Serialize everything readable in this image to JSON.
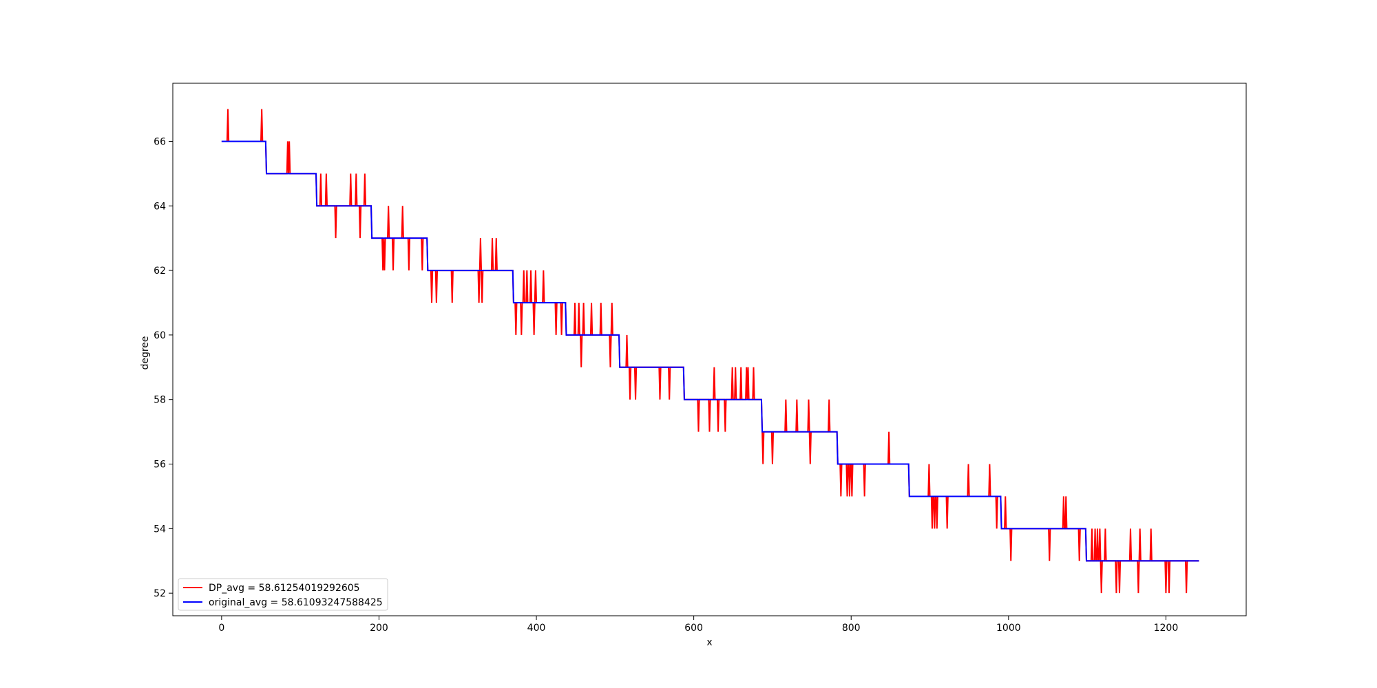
{
  "chart_data": {
    "type": "line",
    "title": "",
    "xlabel": "x",
    "ylabel": "degree",
    "xlim": [
      -62,
      1302
    ],
    "ylim": [
      51.3,
      67.8
    ],
    "xticks": [
      0,
      200,
      400,
      600,
      800,
      1000,
      1200
    ],
    "yticks": [
      52,
      54,
      56,
      58,
      60,
      62,
      64,
      66
    ],
    "grid": false,
    "legend_position": "lower-left",
    "series": [
      {
        "name": "DP_avg = 58.61254019292605",
        "color": "#ff0000",
        "base_steps": [
          [
            0,
            56,
            66
          ],
          [
            57,
            120,
            65
          ],
          [
            121,
            190,
            64
          ],
          [
            191,
            261,
            63
          ],
          [
            262,
            370,
            62
          ],
          [
            371,
            437,
            61
          ],
          [
            438,
            505,
            60
          ],
          [
            506,
            587,
            59
          ],
          [
            588,
            686,
            58
          ],
          [
            687,
            782,
            57
          ],
          [
            783,
            873,
            56
          ],
          [
            874,
            990,
            55
          ],
          [
            991,
            1098,
            54
          ],
          [
            1099,
            1242,
            53
          ]
        ],
        "spikes": [
          [
            8,
            67
          ],
          [
            51,
            67
          ],
          [
            84,
            66
          ],
          [
            86,
            66
          ],
          [
            126,
            65
          ],
          [
            133,
            65
          ],
          [
            145,
            63
          ],
          [
            164,
            65
          ],
          [
            171,
            65
          ],
          [
            176,
            63
          ],
          [
            182,
            65
          ],
          [
            205,
            62
          ],
          [
            207,
            62
          ],
          [
            212,
            64
          ],
          [
            218,
            62
          ],
          [
            230,
            64
          ],
          [
            238,
            62
          ],
          [
            255,
            62
          ],
          [
            267,
            61
          ],
          [
            273,
            61
          ],
          [
            293,
            61
          ],
          [
            327,
            61
          ],
          [
            329,
            63
          ],
          [
            331,
            61
          ],
          [
            344,
            63
          ],
          [
            349,
            63
          ],
          [
            374,
            60
          ],
          [
            381,
            60
          ],
          [
            384,
            62
          ],
          [
            388,
            62
          ],
          [
            393,
            62
          ],
          [
            397,
            60
          ],
          [
            399,
            62
          ],
          [
            409,
            62
          ],
          [
            425,
            60
          ],
          [
            432,
            60
          ],
          [
            449,
            61
          ],
          [
            454,
            61
          ],
          [
            457,
            59
          ],
          [
            460,
            61
          ],
          [
            470,
            61
          ],
          [
            482,
            61
          ],
          [
            494,
            59
          ],
          [
            496,
            61
          ],
          [
            515,
            60
          ],
          [
            519,
            58
          ],
          [
            526,
            58
          ],
          [
            557,
            58
          ],
          [
            569,
            58
          ],
          [
            606,
            57
          ],
          [
            620,
            57
          ],
          [
            626,
            59
          ],
          [
            631,
            57
          ],
          [
            640,
            57
          ],
          [
            649,
            59
          ],
          [
            653,
            59
          ],
          [
            660,
            59
          ],
          [
            667,
            59
          ],
          [
            669,
            59
          ],
          [
            676,
            59
          ],
          [
            688,
            56
          ],
          [
            700,
            56
          ],
          [
            717,
            58
          ],
          [
            731,
            58
          ],
          [
            746,
            58
          ],
          [
            748,
            56
          ],
          [
            772,
            58
          ],
          [
            787,
            55
          ],
          [
            795,
            55
          ],
          [
            798,
            55
          ],
          [
            801,
            55
          ],
          [
            817,
            55
          ],
          [
            848,
            57
          ],
          [
            899,
            56
          ],
          [
            903,
            54
          ],
          [
            906,
            54
          ],
          [
            909,
            54
          ],
          [
            922,
            54
          ],
          [
            949,
            56
          ],
          [
            976,
            56
          ],
          [
            985,
            54
          ],
          [
            996,
            55
          ],
          [
            1003,
            53
          ],
          [
            1052,
            53
          ],
          [
            1070,
            55
          ],
          [
            1073,
            55
          ],
          [
            1090,
            53
          ],
          [
            1106,
            54
          ],
          [
            1110,
            54
          ],
          [
            1113,
            54
          ],
          [
            1116,
            54
          ],
          [
            1118,
            52
          ],
          [
            1123,
            54
          ],
          [
            1137,
            52
          ],
          [
            1141,
            52
          ],
          [
            1155,
            54
          ],
          [
            1165,
            52
          ],
          [
            1167,
            54
          ],
          [
            1181,
            54
          ],
          [
            1200,
            52
          ],
          [
            1204,
            52
          ],
          [
            1226,
            52
          ]
        ]
      },
      {
        "name": "original_avg = 58.61093247588425",
        "color": "#0000ff",
        "base_steps": [
          [
            0,
            56,
            66
          ],
          [
            57,
            120,
            65
          ],
          [
            121,
            190,
            64
          ],
          [
            191,
            261,
            63
          ],
          [
            262,
            370,
            62
          ],
          [
            371,
            437,
            61
          ],
          [
            438,
            505,
            60
          ],
          [
            506,
            587,
            59
          ],
          [
            588,
            686,
            58
          ],
          [
            687,
            782,
            57
          ],
          [
            783,
            873,
            56
          ],
          [
            874,
            990,
            55
          ],
          [
            991,
            1098,
            54
          ],
          [
            1099,
            1242,
            53
          ]
        ]
      }
    ]
  }
}
